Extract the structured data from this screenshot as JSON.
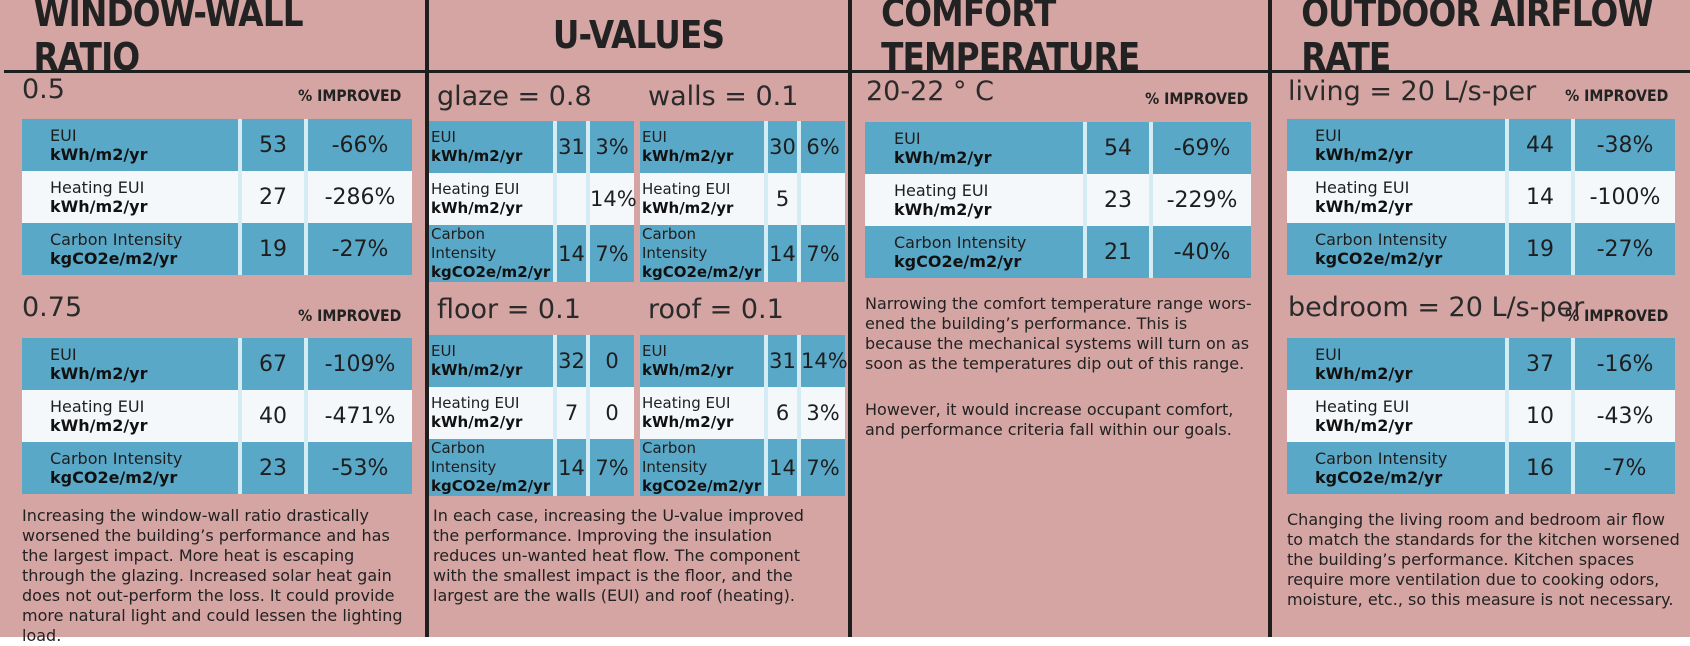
{
  "window_wall": {
    "header": "WINDOW-WALL RATIO",
    "improved_label": "% IMPROVED",
    "s1": {
      "title": "0.5",
      "rows": [
        {
          "label": "EUI",
          "unit": "kWh/m2/yr",
          "value": "53",
          "pct": "-66%"
        },
        {
          "label": "Heating EUI",
          "unit": "kWh/m2/yr",
          "value": "27",
          "pct": "-286%"
        },
        {
          "label": "Carbon Intensity",
          "unit": "kgCO2e/m2/yr",
          "value": "19",
          "pct": "-27%"
        }
      ]
    },
    "s2": {
      "title": "0.75",
      "rows": [
        {
          "label": "EUI",
          "unit": "kWh/m2/yr",
          "value": "67",
          "pct": "-109%"
        },
        {
          "label": "Heating EUI",
          "unit": "kWh/m2/yr",
          "value": "40",
          "pct": "-471%"
        },
        {
          "label": "Carbon Intensity",
          "unit": "kgCO2e/m2/yr",
          "value": "23",
          "pct": "-53%"
        }
      ]
    },
    "note": "Increasing the window-wall ratio drastically worsened the building’s performance and has the largest impact. More heat is escaping through the glazing. Increased solar heat gain does not out-perform the loss. It could provide more natural light and could lessen the lighting load."
  },
  "u_values": {
    "header": "U-VALUES",
    "glaze": {
      "title": "glaze = 0.8",
      "rows": [
        {
          "label": "EUI",
          "unit": "kWh/m2/yr",
          "value": "31",
          "pct": "3%"
        },
        {
          "label": "Heating EUI",
          "unit": "kWh/m2/yr",
          "value": "",
          "pct": "14%"
        },
        {
          "label": "Carbon Intensity",
          "unit": "kgCO2e/m2/yr",
          "value": "14",
          "pct": "7%"
        }
      ]
    },
    "walls": {
      "title": "walls = 0.1",
      "rows": [
        {
          "label": "EUI",
          "unit": "kWh/m2/yr",
          "value": "30",
          "pct": "6%"
        },
        {
          "label": "Heating EUI",
          "unit": "kWh/m2/yr",
          "value": "5",
          "pct": ""
        },
        {
          "label": "Carbon Intensity",
          "unit": "kgCO2e/m2/yr",
          "value": "14",
          "pct": "7%"
        }
      ]
    },
    "floor": {
      "title": "floor = 0.1",
      "rows": [
        {
          "label": "EUI",
          "unit": "kWh/m2/yr",
          "value": "32",
          "pct": "0"
        },
        {
          "label": "Heating EUI",
          "unit": "kWh/m2/yr",
          "value": "7",
          "pct": "0"
        },
        {
          "label": "Carbon Intensity",
          "unit": "kgCO2e/m2/yr",
          "value": "14",
          "pct": "7%"
        }
      ]
    },
    "roof": {
      "title": "roof = 0.1",
      "rows": [
        {
          "label": "EUI",
          "unit": "kWh/m2/yr",
          "value": "31",
          "pct": "14%"
        },
        {
          "label": "Heating EUI",
          "unit": "kWh/m2/yr",
          "value": "6",
          "pct": "3%"
        },
        {
          "label": "Carbon Intensity",
          "unit": "kgCO2e/m2/yr",
          "value": "14",
          "pct": "7%"
        }
      ]
    },
    "note": "In each case, increasing the U-value improved the performance. Improving the insulation reduces un-wanted heat flow. The component with the smallest impact is the floor, and the largest are the walls (EUI) and roof (heating)."
  },
  "comfort": {
    "header": "COMFORT TEMPERATURE",
    "improved_label": "% IMPROVED",
    "s1": {
      "title": "20-22 ° C",
      "rows": [
        {
          "label": "EUI",
          "unit": "kWh/m2/yr",
          "value": "54",
          "pct": "-69%"
        },
        {
          "label": "Heating EUI",
          "unit": "kWh/m2/yr",
          "value": "23",
          "pct": "-229%"
        },
        {
          "label": "Carbon Intensity",
          "unit": "kgCO2e/m2/yr",
          "value": "21",
          "pct": "-40%"
        }
      ]
    },
    "note1": "Narrowing the comfort temperature range wors-ened the building’s performance. This is because the mechanical systems will turn on as soon as the temperatures dip out of this range.",
    "note2": "However, it would increase occupant comfort, and performance criteria fall within our goals."
  },
  "airflow": {
    "header": "OUTDOOR AIRFLOW RATE",
    "improved_label": "% IMPROVED",
    "s1": {
      "title": "living = 20 L/s-per",
      "rows": [
        {
          "label": "EUI",
          "unit": "kWh/m2/yr",
          "value": "44",
          "pct": "-38%"
        },
        {
          "label": "Heating EUI",
          "unit": "kWh/m2/yr",
          "value": "14",
          "pct": "-100%"
        },
        {
          "label": "Carbon Intensity",
          "unit": "kgCO2e/m2/yr",
          "value": "19",
          "pct": "-27%"
        }
      ]
    },
    "s2": {
      "title": "bedroom = 20 L/s-per",
      "rows": [
        {
          "label": "EUI",
          "unit": "kWh/m2/yr",
          "value": "37",
          "pct": "-16%"
        },
        {
          "label": "Heating EUI",
          "unit": "kWh/m2/yr",
          "value": "10",
          "pct": "-43%"
        },
        {
          "label": "Carbon Intensity",
          "unit": "kgCO2e/m2/yr",
          "value": "16",
          "pct": "-7%"
        }
      ]
    },
    "note": "Changing the living room and bedroom air flow to match the standards for the kitchen worsened the building’s performance. Kitchen spaces require more ventilation due to cooking odors, moisture, etc., so this measure is not necessary."
  }
}
